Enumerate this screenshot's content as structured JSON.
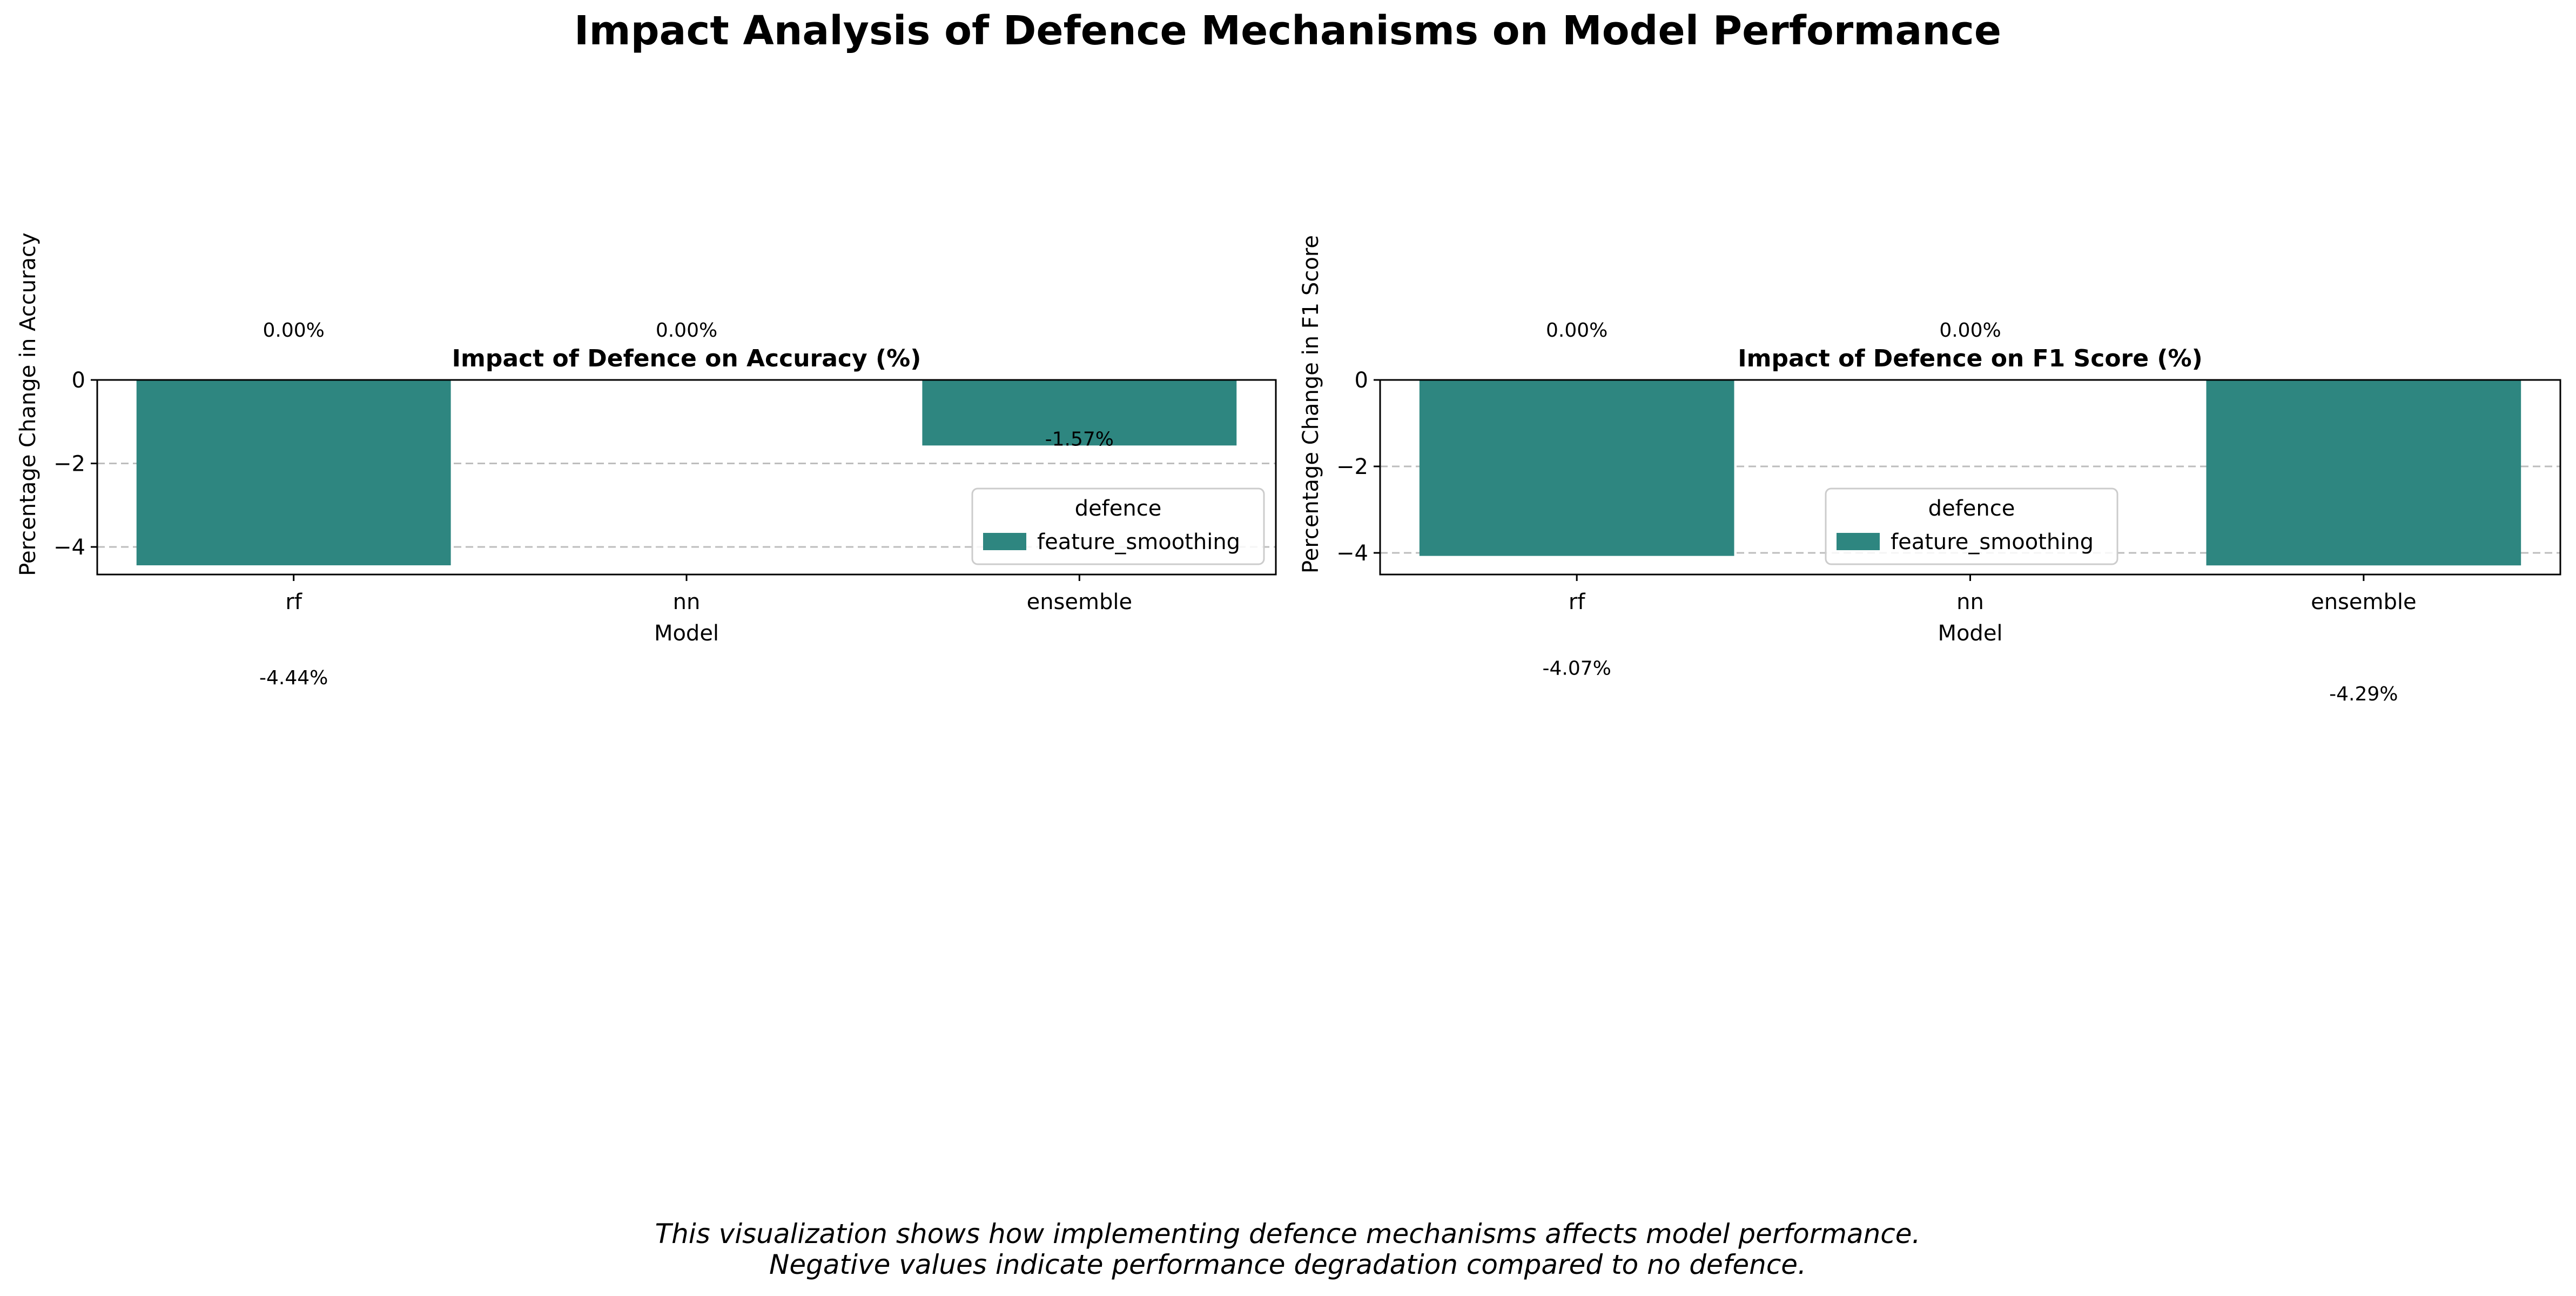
{
  "title": "Impact Analysis of Defence Mechanisms on Model Performance",
  "caption": [
    "This visualization shows how implementing defence mechanisms affects model performance.",
    "Negative values indicate performance degradation compared to no defence."
  ],
  "colors": {
    "bar": "#2e8680",
    "grid": "#bdbdbd"
  },
  "chart_data": [
    {
      "type": "bar",
      "title": "Impact of Defence on Accuracy (%)",
      "xlabel": "Model",
      "ylabel": "Percentage Change in Accuracy",
      "categories": [
        "rf",
        "nn",
        "ensemble"
      ],
      "series": [
        {
          "name": "feature_smoothing",
          "values": [
            -4.44,
            0.0,
            -1.57
          ]
        }
      ],
      "data_labels": [
        "-4.44%",
        "0.00%",
        "-1.57%"
      ],
      "zero_labels": [
        "0.00%",
        "0.00%"
      ],
      "ylim": [
        -4.66,
        0
      ],
      "yticks": [
        0,
        -2,
        -4
      ],
      "ytick_labels": [
        "0",
        "−2",
        "−4"
      ],
      "grid": "y dashed",
      "legend": {
        "title": "defence",
        "placement": "lower-right"
      }
    },
    {
      "type": "bar",
      "title": "Impact of Defence on F1 Score (%)",
      "xlabel": "Model",
      "ylabel": "Percentage Change in F1 Score",
      "categories": [
        "rf",
        "nn",
        "ensemble"
      ],
      "series": [
        {
          "name": "feature_smoothing",
          "values": [
            -4.07,
            0.0,
            -4.29
          ]
        }
      ],
      "data_labels": [
        "-4.07%",
        "0.00%",
        "-4.29%"
      ],
      "zero_labels": [
        "0.00%",
        "0.00%"
      ],
      "ylim": [
        -4.5,
        0
      ],
      "yticks": [
        0,
        -2,
        -4
      ],
      "ytick_labels": [
        "0",
        "−2",
        "−4"
      ],
      "grid": "y dashed",
      "legend": {
        "title": "defence",
        "placement": "lower-center"
      }
    }
  ]
}
